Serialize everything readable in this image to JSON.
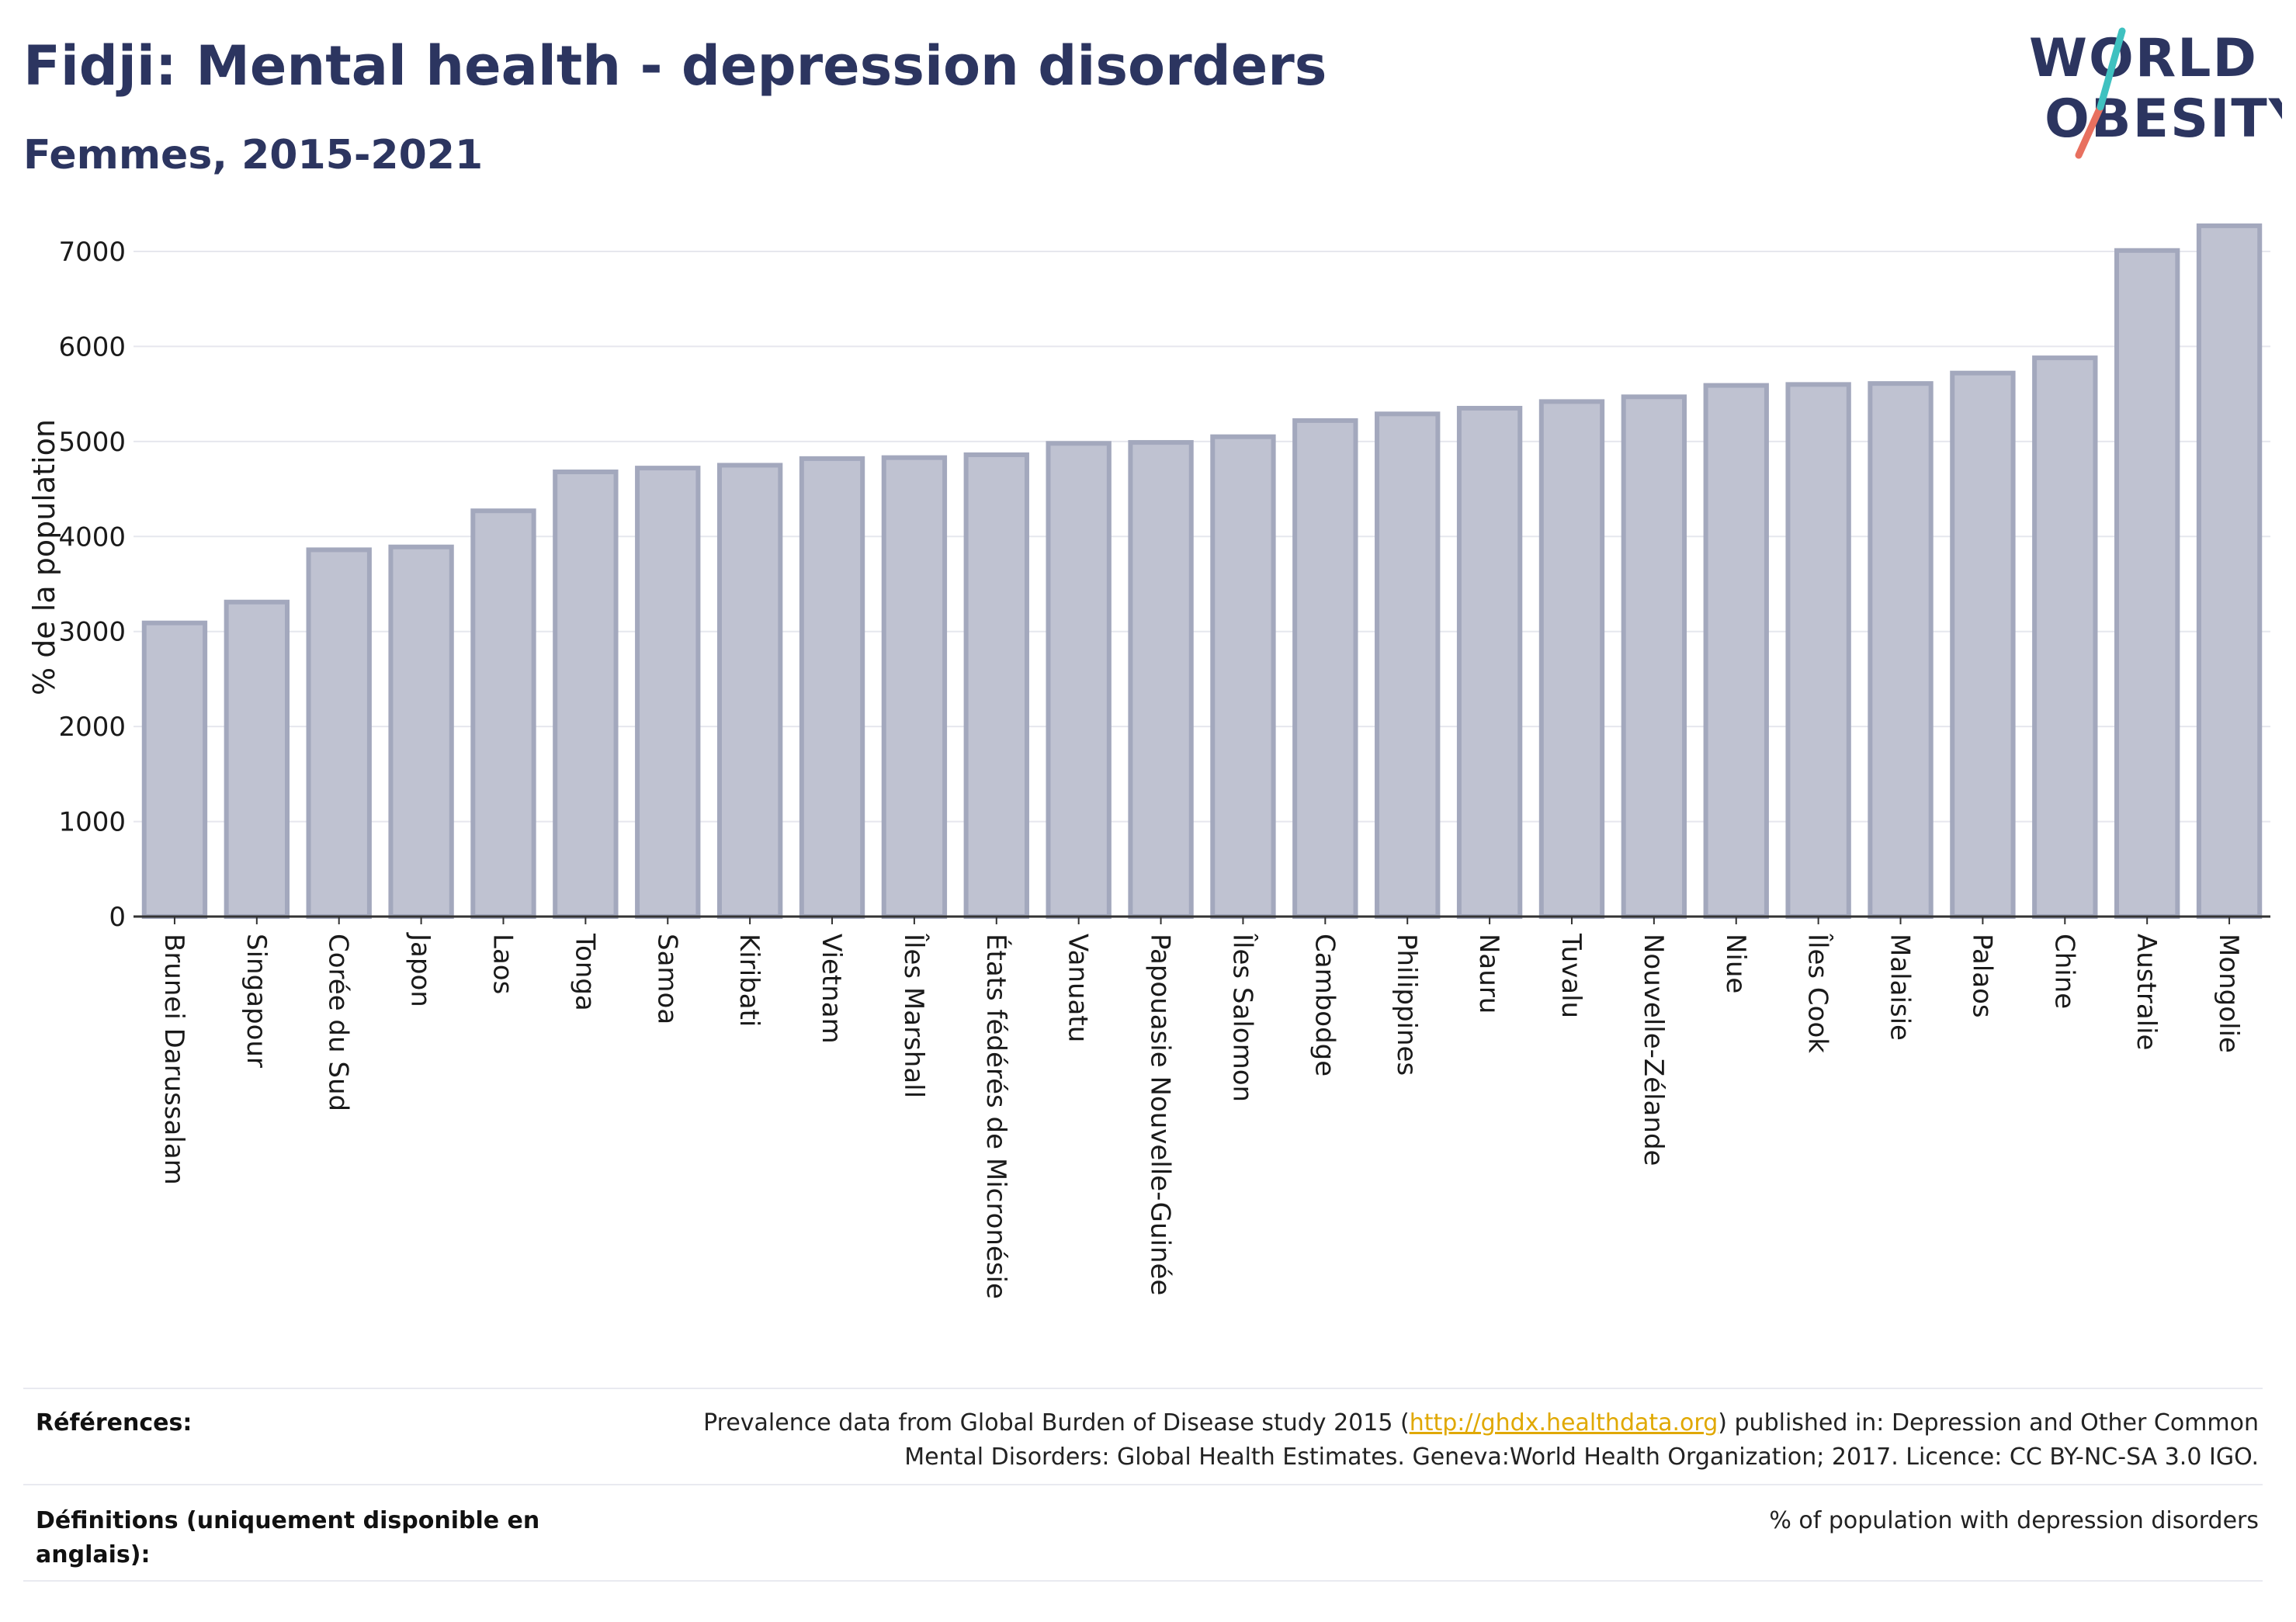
{
  "header": {
    "title": "Fidji: Mental health - depression disorders",
    "subtitle": "Femmes, 2015-2021"
  },
  "logo": {
    "line1": "WORLD",
    "line2": "OBESITY"
  },
  "chart_data": {
    "type": "bar",
    "title": "Fidji: Mental health - depression disorders",
    "subtitle": "Femmes, 2015-2021",
    "xlabel": "",
    "ylabel": "% de la population",
    "ylim": [
      0,
      7400
    ],
    "yticks": [
      0,
      1000,
      2000,
      3000,
      4000,
      5000,
      6000,
      7000
    ],
    "grid": true,
    "bar_color": "#bfc2d1",
    "bar_edge_color": "#a3a8bd",
    "categories": [
      "Brunei Darussalam",
      "Singapour",
      "Corée du Sud",
      "Japon",
      "Laos",
      "Tonga",
      "Samoa",
      "Kiribati",
      "Vietnam",
      "Îles Marshall",
      "États fédérés de Micronésie",
      "Vanuatu",
      "Papouasie Nouvelle-Guinée",
      "Îles Salomon",
      "Cambodge",
      "Philippines",
      "Nauru",
      "Tuvalu",
      "Nouvelle-Zélande",
      "Niue",
      "Îles Cook",
      "Malaisie",
      "Palaos",
      "Chine",
      "Australie",
      "Mongolie"
    ],
    "values": [
      3090,
      3310,
      3860,
      3890,
      4270,
      4680,
      4720,
      4750,
      4820,
      4830,
      4860,
      4980,
      4990,
      5050,
      5220,
      5290,
      5350,
      5420,
      5470,
      5590,
      5600,
      5610,
      5720,
      5880,
      7010,
      7270
    ]
  },
  "footer": {
    "references_label": "Références:",
    "references_pre": "Prevalence data from Global Burden of Disease study 2015 (",
    "references_link": "http://ghdx.healthdata.org",
    "references_post": ") published in: Depression and Other Common",
    "references_line2": "Mental Disorders: Global Health Estimates. Geneva:World Health Organization; 2017. Licence: CC BY-NC-SA 3.0 IGO.",
    "definitions_label_line1": "Définitions (uniquement disponible en",
    "definitions_label_line2": "anglais):",
    "definitions_text": "% of population with depression disorders"
  },
  "colors": {
    "title": "#2c3560",
    "logo_slash_teal": "#3fc1c0",
    "logo_slash_coral": "#e8705f",
    "link": "#e0a800"
  }
}
